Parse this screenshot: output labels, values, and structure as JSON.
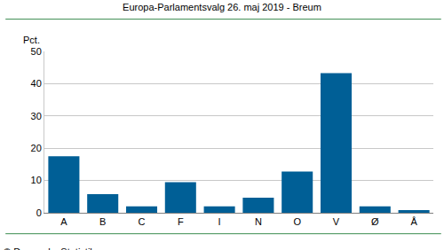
{
  "chart_data": {
    "type": "bar",
    "title": "Europa-Parlamentsvalg 26. maj 2019 - Breum",
    "y_label": "Pct.",
    "source": "© Danmarks Statistik",
    "categories": [
      "A",
      "B",
      "C",
      "F",
      "I",
      "N",
      "O",
      "V",
      "Ø",
      "Å"
    ],
    "values": [
      17.5,
      5.8,
      2.0,
      9.5,
      2.0,
      4.7,
      12.8,
      43.3,
      2.0,
      0.8
    ],
    "color": "#005f96",
    "ylim": [
      0,
      50
    ],
    "yticks": [
      0,
      10,
      20,
      30,
      40,
      50
    ],
    "grid": true
  }
}
